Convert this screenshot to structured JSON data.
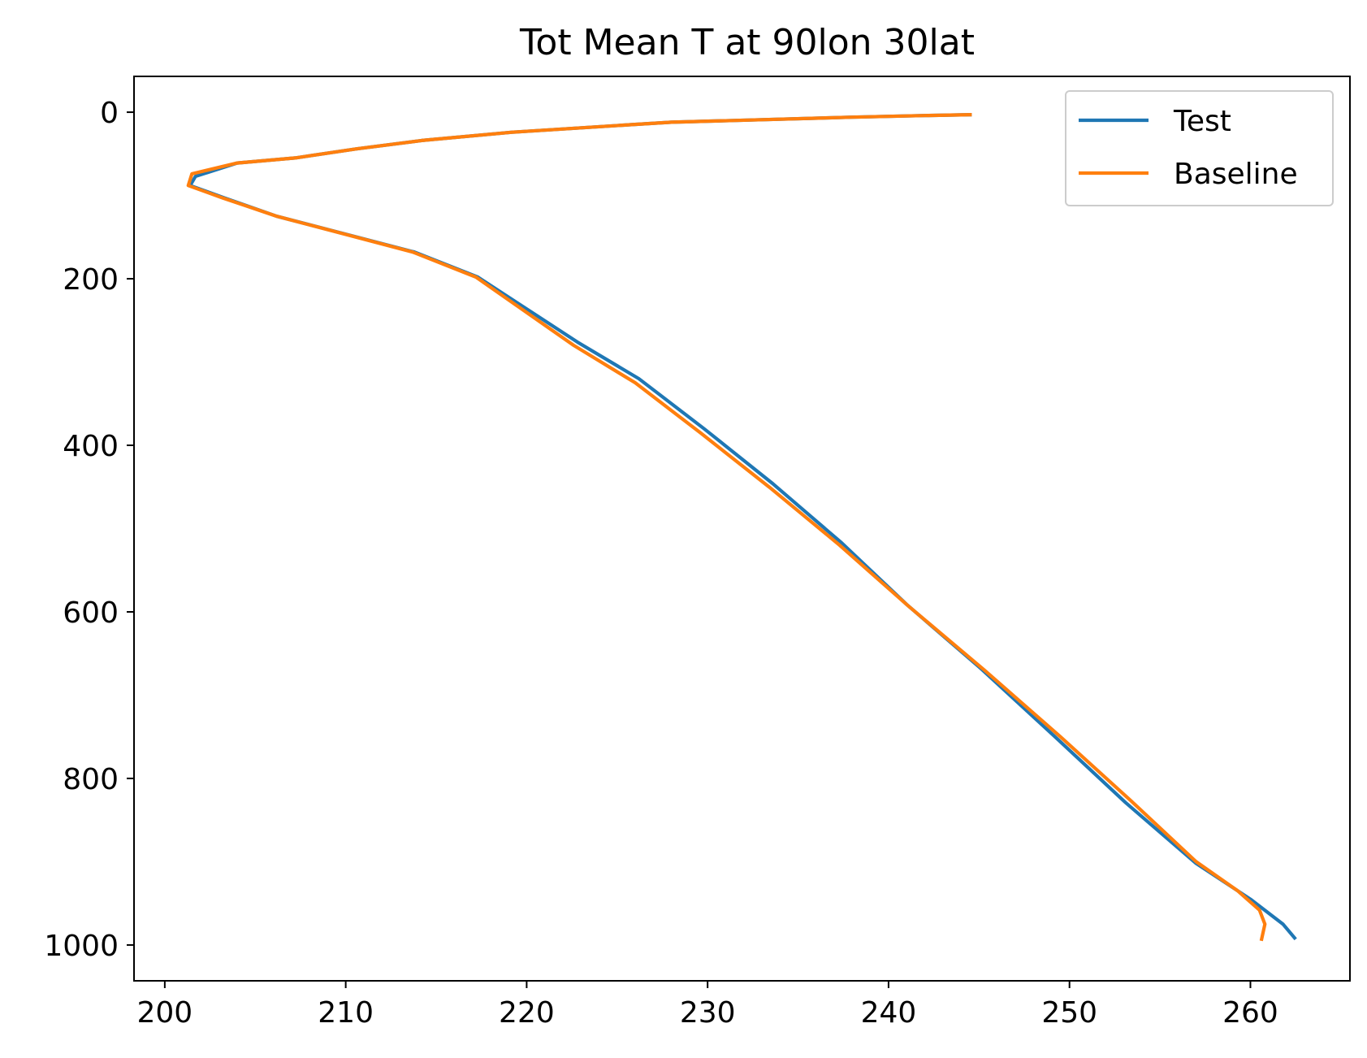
{
  "chart_data": {
    "type": "line",
    "title": "Tot Mean T at 90lon 30lat",
    "xlabel": "",
    "ylabel": "",
    "xlim": [
      198.3,
      265.5
    ],
    "ylim": [
      1043,
      -43
    ],
    "y_inverted": true,
    "grid": false,
    "legend_position": "top-right",
    "xticks": [
      200,
      210,
      220,
      230,
      240,
      250,
      260
    ],
    "xtick_labels": [
      "200",
      "210",
      "220",
      "230",
      "240",
      "250",
      "260"
    ],
    "yticks": [
      0,
      200,
      400,
      600,
      800,
      1000
    ],
    "ytick_labels": [
      "0",
      "200",
      "400",
      "600",
      "800",
      "1000"
    ],
    "series": [
      {
        "name": "Test",
        "color": "#1f77b4",
        "x": [
          244.6,
          242.0,
          238.0,
          233.0,
          228.0,
          225.8,
          219.2,
          214.2,
          210.6,
          207.2,
          204.0,
          201.7,
          201.4,
          203.3,
          206.2,
          213.8,
          217.3,
          222.8,
          226.2,
          229.8,
          233.6,
          237.4,
          241.0,
          245.1,
          249.2,
          253.1,
          257.0,
          260.0,
          261.8,
          262.5
        ],
        "y": [
          3,
          4,
          6,
          9,
          12,
          15,
          24,
          34,
          44,
          55,
          61,
          77,
          88,
          103,
          125,
          168,
          198,
          276,
          320,
          380,
          446,
          517,
          591,
          668,
          750,
          829,
          902,
          945,
          975,
          993
        ]
      },
      {
        "name": "Baseline",
        "color": "#ff7f0e",
        "x": [
          244.6,
          242.0,
          238.0,
          233.0,
          228.0,
          225.8,
          219.2,
          214.2,
          210.6,
          207.2,
          204.0,
          201.5,
          201.3,
          203.2,
          206.2,
          213.7,
          217.2,
          222.6,
          226.0,
          229.6,
          233.4,
          237.3,
          241.1,
          245.3,
          249.5,
          253.4,
          257.0,
          259.3,
          260.5,
          260.8,
          260.6
        ],
        "y": [
          3,
          4,
          6,
          9,
          12,
          15,
          24,
          34,
          44,
          55,
          61,
          74,
          88,
          103,
          125,
          168,
          198,
          280,
          325,
          385,
          450,
          520,
          593,
          670,
          750,
          827,
          900,
          935,
          958,
          975,
          995
        ]
      }
    ]
  }
}
